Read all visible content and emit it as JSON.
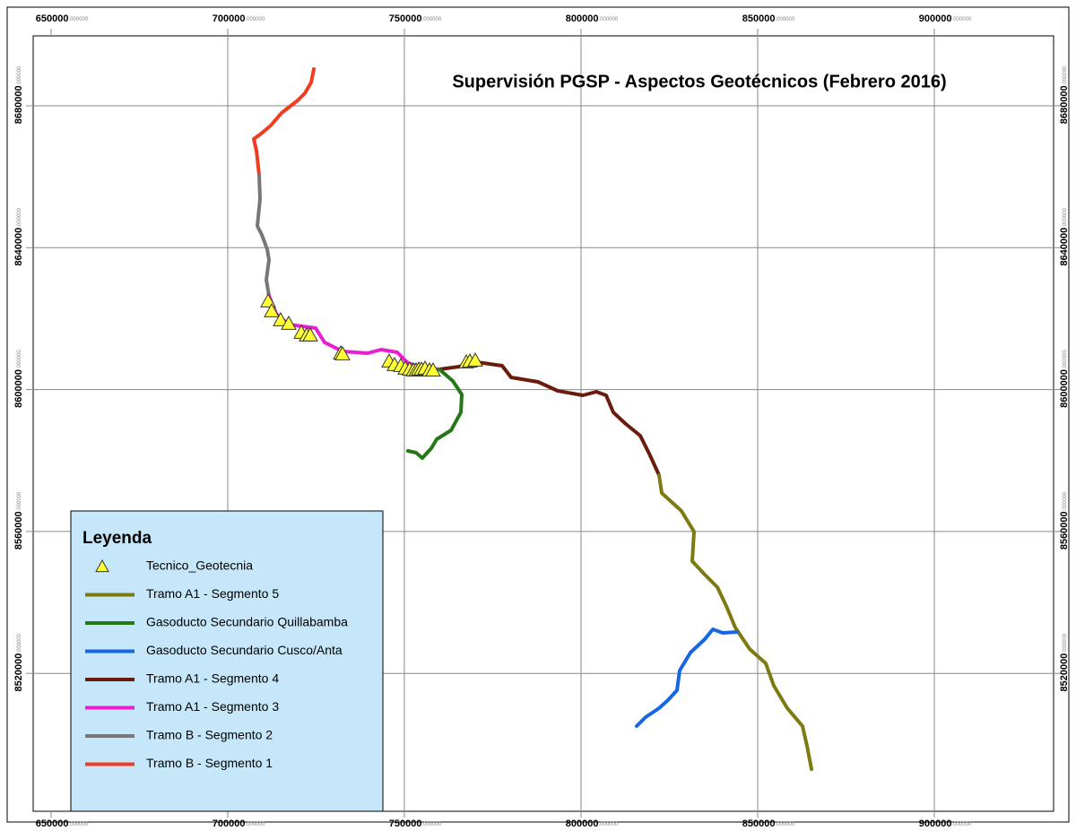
{
  "map": {
    "title": "Supervisión PGSP - Aspectos Geotécnicos (Febrero 2016)",
    "x_labels": [
      {
        "main": "650000",
        "decimals": ".000000"
      },
      {
        "main": "700000",
        "decimals": ".000000"
      },
      {
        "main": "750000",
        "decimals": ".000000"
      },
      {
        "main": "800000",
        "decimals": ".000000"
      },
      {
        "main": "850000",
        "decimals": ".000000"
      },
      {
        "main": "900000",
        "decimals": ".000000"
      }
    ],
    "y_labels": [
      {
        "main": "8680000",
        "decimals": ".000000"
      },
      {
        "main": "8640000",
        "decimals": ".000000"
      },
      {
        "main": "8600000",
        "decimals": ".000000"
      },
      {
        "main": "8560000",
        "decimals": ".000000"
      },
      {
        "main": "8520000",
        "decimals": ".000000"
      }
    ],
    "legend": {
      "title": "Leyenda",
      "items": [
        "Tecnico_Geotecnia",
        "Tramo A1 - Segmento 5",
        "Gasoducto Secundario Quillabamba",
        "Gasoducto Secundario Cusco/Anta",
        "Tramo A1 - Segmento 4",
        "Tramo A1 - Segmento 3",
        "Tramo B - Segmento 2",
        "Tramo B - Segmento 1"
      ]
    }
  }
}
